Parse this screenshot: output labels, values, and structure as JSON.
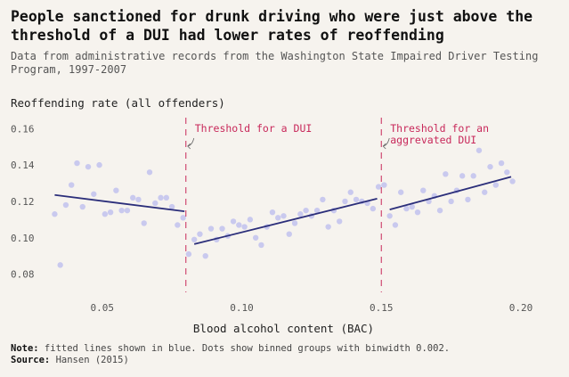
{
  "chart_data": {
    "type": "scatter",
    "title": "People sanctioned for drunk driving who were just above the threshold of a DUI had lower rates of reoffending",
    "subtitle": "Data from administrative records from the Washington State Impaired Driver Testing Program, 1997-2007",
    "ylabel": "Reoffending rate (all offenders)",
    "xlabel": "Blood alcohol content (BAC)",
    "xlim": [
      0.03,
      0.2
    ],
    "ylim": [
      0.07,
      0.167
    ],
    "x_ticks": [
      0.05,
      0.1,
      0.15,
      0.2
    ],
    "x_tick_labels": [
      "0.05",
      "0.10",
      "0.15",
      "0.20"
    ],
    "y_ticks": [
      0.08,
      0.1,
      0.12,
      0.14,
      0.16
    ],
    "y_tick_labels": [
      "0.08",
      "0.10",
      "0.12",
      "0.14",
      "0.16"
    ],
    "grid": "none",
    "point_color": "#c9c9ee",
    "fit_color": "#2b2e7a",
    "threshold_color": "#c8285a",
    "points": [
      [
        0.033,
        0.113
      ],
      [
        0.035,
        0.085
      ],
      [
        0.037,
        0.118
      ],
      [
        0.039,
        0.129
      ],
      [
        0.041,
        0.141
      ],
      [
        0.043,
        0.117
      ],
      [
        0.045,
        0.139
      ],
      [
        0.047,
        0.124
      ],
      [
        0.049,
        0.14
      ],
      [
        0.051,
        0.113
      ],
      [
        0.053,
        0.114
      ],
      [
        0.055,
        0.126
      ],
      [
        0.057,
        0.115
      ],
      [
        0.059,
        0.115
      ],
      [
        0.061,
        0.122
      ],
      [
        0.063,
        0.121
      ],
      [
        0.065,
        0.108
      ],
      [
        0.067,
        0.136
      ],
      [
        0.069,
        0.119
      ],
      [
        0.071,
        0.122
      ],
      [
        0.073,
        0.122
      ],
      [
        0.075,
        0.117
      ],
      [
        0.077,
        0.107
      ],
      [
        0.079,
        0.111
      ],
      [
        0.081,
        0.091
      ],
      [
        0.083,
        0.099
      ],
      [
        0.085,
        0.102
      ],
      [
        0.087,
        0.09
      ],
      [
        0.089,
        0.105
      ],
      [
        0.091,
        0.099
      ],
      [
        0.093,
        0.105
      ],
      [
        0.095,
        0.101
      ],
      [
        0.097,
        0.109
      ],
      [
        0.099,
        0.107
      ],
      [
        0.101,
        0.106
      ],
      [
        0.103,
        0.11
      ],
      [
        0.105,
        0.1
      ],
      [
        0.107,
        0.096
      ],
      [
        0.109,
        0.106
      ],
      [
        0.111,
        0.114
      ],
      [
        0.113,
        0.111
      ],
      [
        0.115,
        0.112
      ],
      [
        0.117,
        0.102
      ],
      [
        0.119,
        0.108
      ],
      [
        0.121,
        0.113
      ],
      [
        0.123,
        0.115
      ],
      [
        0.125,
        0.112
      ],
      [
        0.127,
        0.115
      ],
      [
        0.129,
        0.121
      ],
      [
        0.131,
        0.106
      ],
      [
        0.133,
        0.115
      ],
      [
        0.135,
        0.109
      ],
      [
        0.137,
        0.12
      ],
      [
        0.139,
        0.125
      ],
      [
        0.141,
        0.121
      ],
      [
        0.143,
        0.12
      ],
      [
        0.145,
        0.119
      ],
      [
        0.147,
        0.116
      ],
      [
        0.149,
        0.128
      ],
      [
        0.151,
        0.129
      ],
      [
        0.153,
        0.112
      ],
      [
        0.155,
        0.107
      ],
      [
        0.157,
        0.125
      ],
      [
        0.159,
        0.116
      ],
      [
        0.161,
        0.117
      ],
      [
        0.163,
        0.114
      ],
      [
        0.165,
        0.126
      ],
      [
        0.167,
        0.12
      ],
      [
        0.169,
        0.123
      ],
      [
        0.171,
        0.115
      ],
      [
        0.173,
        0.135
      ],
      [
        0.175,
        0.12
      ],
      [
        0.177,
        0.126
      ],
      [
        0.179,
        0.134
      ],
      [
        0.181,
        0.121
      ],
      [
        0.183,
        0.134
      ],
      [
        0.185,
        0.148
      ],
      [
        0.187,
        0.125
      ],
      [
        0.189,
        0.139
      ],
      [
        0.191,
        0.129
      ],
      [
        0.193,
        0.141
      ],
      [
        0.195,
        0.136
      ],
      [
        0.197,
        0.131
      ]
    ],
    "fit_lines": [
      {
        "x": [
          0.033,
          0.0795
        ],
        "y": [
          0.1235,
          0.1145
        ]
      },
      {
        "x": [
          0.083,
          0.1485
        ],
        "y": [
          0.0965,
          0.1215
        ]
      },
      {
        "x": [
          0.153,
          0.1965
        ],
        "y": [
          0.1155,
          0.1335
        ]
      }
    ],
    "thresholds": [
      {
        "x": 0.08,
        "label_lines": [
          "Threshold for a DUI"
        ]
      },
      {
        "x": 0.15,
        "label_lines": [
          "Threshold for an",
          "aggrevated DUI"
        ]
      }
    ]
  },
  "note": {
    "note_label": "Note:",
    "note_text": " fitted lines shown in blue. Dots show binned groups with binwidth 0.002.",
    "source_label": "Source:",
    "source_text": " Hansen (2015)"
  }
}
